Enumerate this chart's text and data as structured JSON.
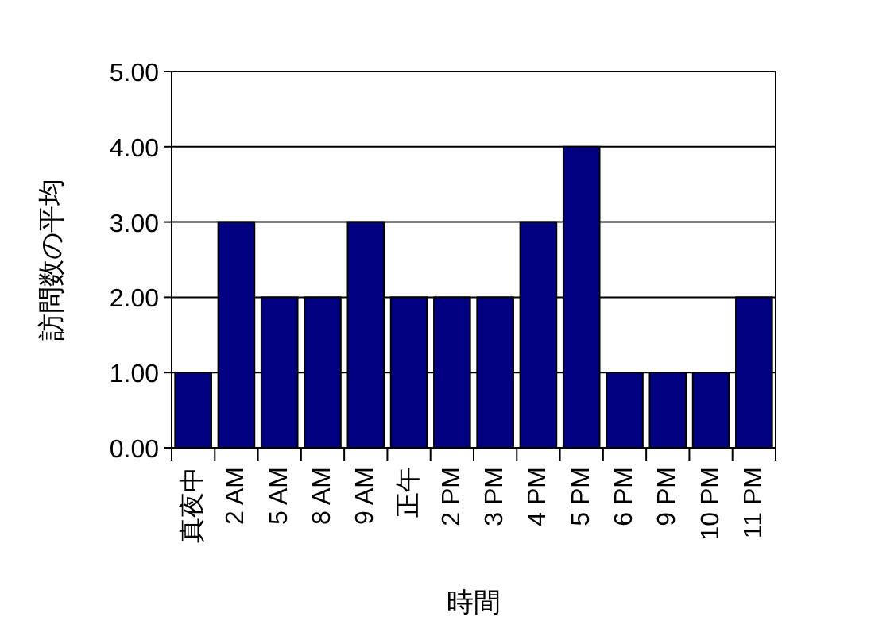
{
  "chart_data": {
    "type": "bar",
    "xlabel": "時間",
    "ylabel": "訪問数の平均",
    "categories": [
      "真夜中",
      "2 AM",
      "5 AM",
      "8 AM",
      "9 AM",
      "正午",
      "2 PM",
      "3 PM",
      "4 PM",
      "5 PM",
      "6 PM",
      "9 PM",
      "10 PM",
      "11 PM"
    ],
    "values": [
      1,
      3,
      2,
      2,
      3,
      2,
      2,
      2,
      3,
      4,
      1,
      1,
      1,
      2
    ],
    "color": "#000080",
    "ylim": [
      0,
      5
    ],
    "yticks": [
      {
        "value": 0,
        "label": "0.00"
      },
      {
        "value": 1,
        "label": "1.00"
      },
      {
        "value": 2,
        "label": "2.00"
      },
      {
        "value": 3,
        "label": "3.00"
      },
      {
        "value": 4,
        "label": "4.00"
      },
      {
        "value": 5,
        "label": "5.00"
      }
    ],
    "grid": "y"
  }
}
